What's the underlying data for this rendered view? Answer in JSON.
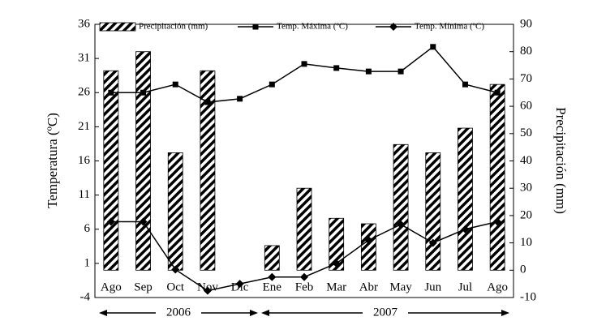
{
  "chart_data": {
    "type": "bar-line",
    "categories": [
      "Ago",
      "Sep",
      "Oct",
      "Nov",
      "Dic",
      "Ene",
      "Feb",
      "Mar",
      "Abr",
      "May",
      "Jun",
      "Jul",
      "Ago"
    ],
    "series": [
      {
        "name": "Precipitación (mm)",
        "type": "bar",
        "axis": "y2",
        "color": "#000000",
        "values": [
          73,
          80,
          43,
          73,
          0,
          9,
          30,
          19,
          17,
          46,
          43,
          52,
          68
        ]
      },
      {
        "name": "Temp. Máxima (ºC)",
        "type": "line",
        "marker": "square",
        "color": "#000000",
        "values": [
          26,
          26,
          27.2,
          24.6,
          25.1,
          27.2,
          30.2,
          29.6,
          29.1,
          29.1,
          32.7,
          27.2,
          26
        ]
      },
      {
        "name": "Temp. Mínima (ºC)",
        "type": "line",
        "marker": "diamond",
        "color": "#000000",
        "values": [
          7.1,
          7.1,
          0.1,
          -3,
          -2,
          -1,
          -1,
          1,
          4.4,
          6.7,
          4,
          6,
          7.1
        ]
      }
    ],
    "ylabel": "Temperatura (ºC)",
    "y2label": "Precipitación (mm)",
    "ylim": [
      -4,
      36
    ],
    "yticks": [
      -4,
      1,
      6,
      11,
      16,
      21,
      26,
      31,
      36
    ],
    "y2lim": [
      -10,
      90
    ],
    "y2ticks": [
      -10,
      0,
      10,
      20,
      30,
      40,
      50,
      60,
      70,
      80,
      90
    ],
    "annotations": [
      "2006",
      "2007"
    ]
  }
}
